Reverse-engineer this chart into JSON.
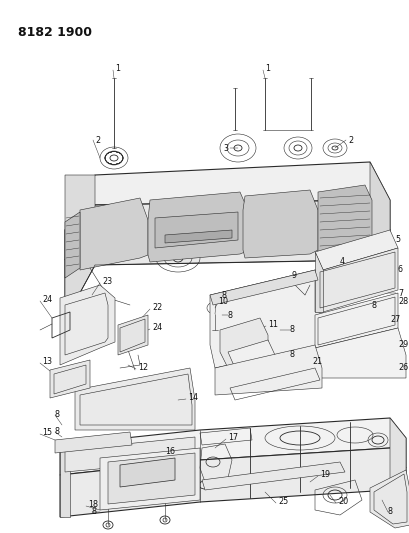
{
  "title": "8182 1900",
  "bg_color": "#ffffff",
  "lc": "#2a2a2a",
  "fig_w": 4.1,
  "fig_h": 5.33,
  "dpi": 100,
  "label_fs": 5.8,
  "title_fs": 9
}
